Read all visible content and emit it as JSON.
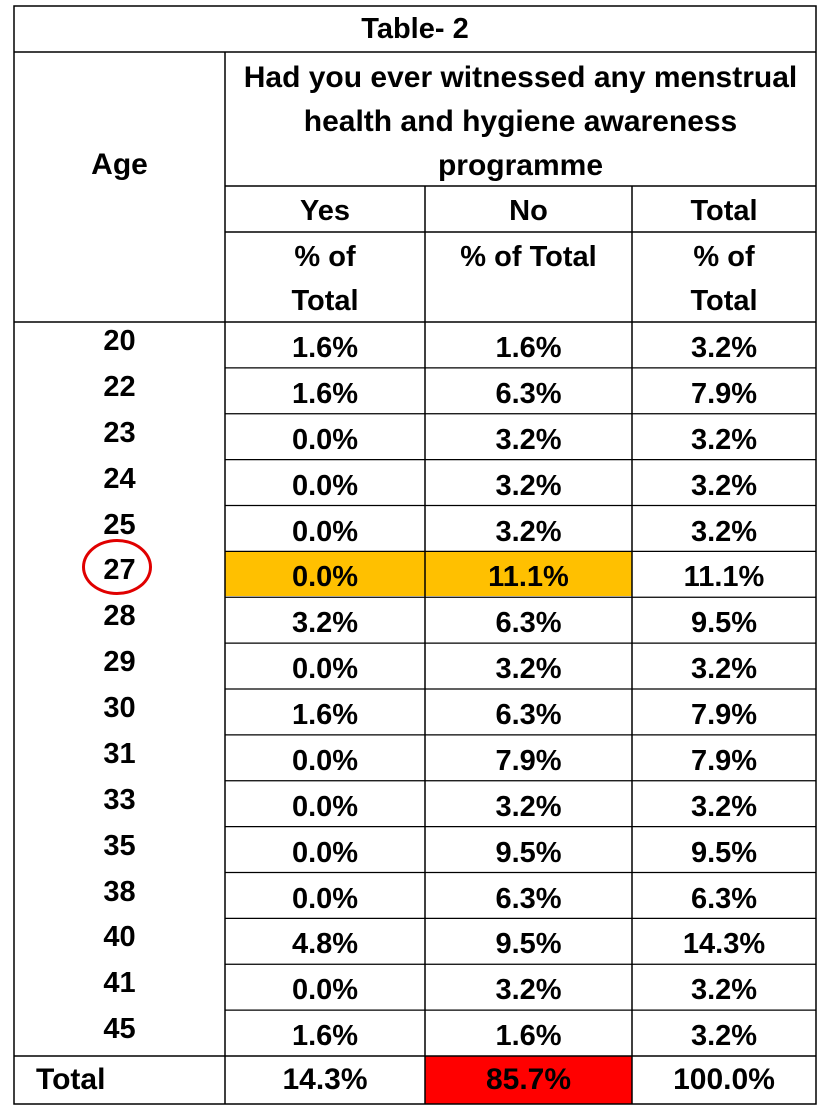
{
  "table": {
    "title": "Table- 2",
    "question": "Had you ever witnessed any menstrual health and hygiene awareness programme",
    "age_header": "Age",
    "columns": [
      "Yes",
      "No",
      "Total"
    ],
    "subheaders": [
      "% of Total",
      "% of Total",
      "% of Total"
    ],
    "ages": [
      "20",
      "22",
      "23",
      "24",
      "25",
      "27",
      "28",
      "29",
      "30",
      "31",
      "33",
      "35",
      "38",
      "40",
      "41",
      "45"
    ],
    "rows": [
      {
        "yes": "1.6%",
        "no": "1.6%",
        "total": "3.2%"
      },
      {
        "yes": "1.6%",
        "no": "6.3%",
        "total": "7.9%"
      },
      {
        "yes": "0.0%",
        "no": "3.2%",
        "total": "3.2%"
      },
      {
        "yes": "0.0%",
        "no": "3.2%",
        "total": "3.2%"
      },
      {
        "yes": "0.0%",
        "no": "3.2%",
        "total": "3.2%"
      },
      {
        "yes": "0.0%",
        "no": "11.1%",
        "total": "11.1%"
      },
      {
        "yes": "3.2%",
        "no": "6.3%",
        "total": "9.5%"
      },
      {
        "yes": "0.0%",
        "no": "3.2%",
        "total": "3.2%"
      },
      {
        "yes": "1.6%",
        "no": "6.3%",
        "total": "7.9%"
      },
      {
        "yes": "0.0%",
        "no": "7.9%",
        "total": "7.9%"
      },
      {
        "yes": "0.0%",
        "no": "3.2%",
        "total": "3.2%"
      },
      {
        "yes": "0.0%",
        "no": "9.5%",
        "total": "9.5%"
      },
      {
        "yes": "0.0%",
        "no": "6.3%",
        "total": "6.3%"
      },
      {
        "yes": "4.8%",
        "no": "9.5%",
        "total": "14.3%"
      },
      {
        "yes": "0.0%",
        "no": "3.2%",
        "total": "3.2%"
      },
      {
        "yes": "1.6%",
        "no": "1.6%",
        "total": "3.2%"
      }
    ],
    "total_row": {
      "label": "Total",
      "yes": "14.3%",
      "no": "85.7%",
      "total": "100.0%"
    },
    "highlight_colors": {
      "row_27": "#ffc000",
      "total_no": "#ff0000",
      "circle": "#e00000"
    }
  }
}
